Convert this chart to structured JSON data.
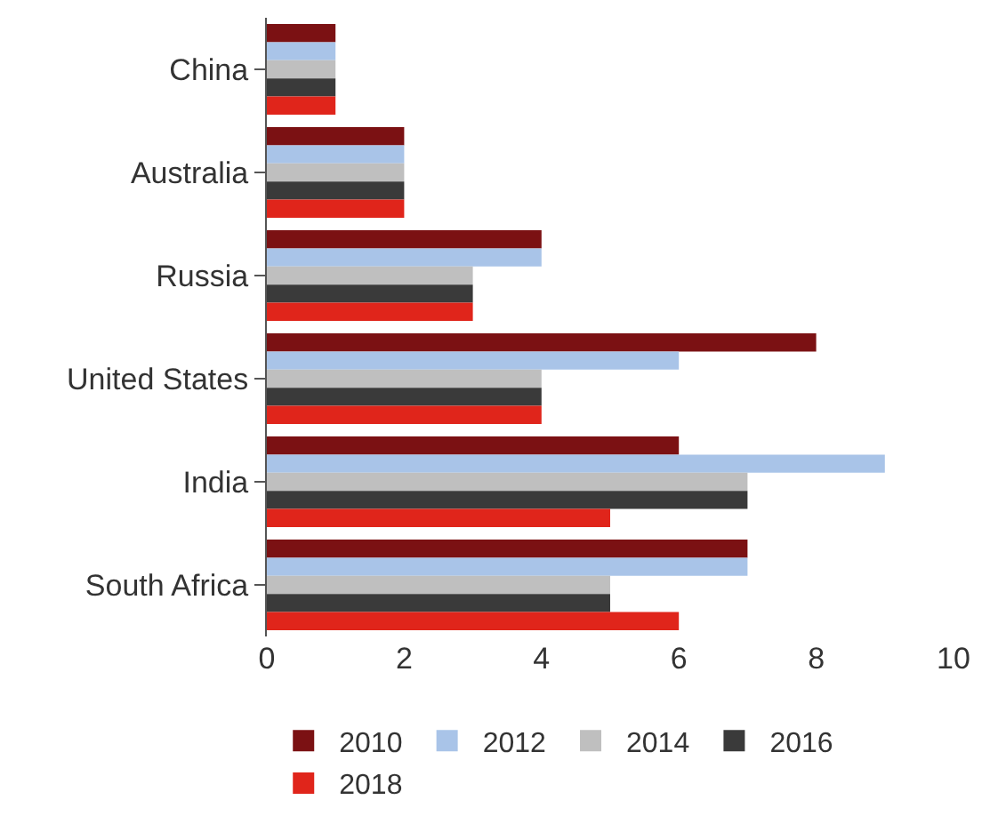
{
  "chart_data": {
    "type": "bar",
    "orientation": "horizontal",
    "categories": [
      "China",
      "Australia",
      "Russia",
      "United States",
      "India",
      "South Africa"
    ],
    "series": [
      {
        "name": "2010",
        "color": "#7b1113",
        "values": [
          1,
          2,
          4,
          8,
          6,
          7
        ]
      },
      {
        "name": "2012",
        "color": "#a9c4e8",
        "values": [
          1,
          2,
          4,
          6,
          9,
          7
        ]
      },
      {
        "name": "2014",
        "color": "#bfbfbf",
        "values": [
          1,
          2,
          3,
          4,
          7,
          5
        ]
      },
      {
        "name": "2016",
        "color": "#3a3a3a",
        "values": [
          1,
          2,
          3,
          4,
          7,
          5
        ]
      },
      {
        "name": "2018",
        "color": "#e0251b",
        "values": [
          1,
          2,
          3,
          4,
          5,
          6
        ]
      }
    ],
    "xlim": [
      0,
      10
    ],
    "xticks": [
      0,
      2,
      4,
      6,
      8,
      10
    ],
    "legend": "bottom"
  }
}
